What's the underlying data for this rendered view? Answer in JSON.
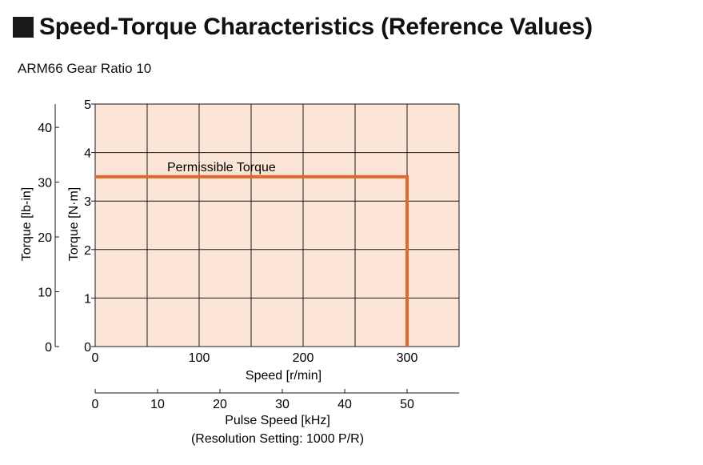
{
  "page": {
    "title": "Speed-Torque Characteristics (Reference Values)",
    "subtitle": "ARM66 Gear Ratio 10"
  },
  "chart_data": {
    "type": "line",
    "colors": {
      "plot_background": "#fce4d6",
      "grid": "#1a1a1a",
      "series": "#e2692b"
    },
    "x_axis": {
      "label": "Speed [r/min]",
      "range": [
        0,
        350
      ],
      "tick_values": [
        0,
        100,
        200,
        300
      ],
      "tick_labels": [
        "0",
        "100",
        "200",
        "300"
      ],
      "grid_step": 50
    },
    "x_axis_secondary": {
      "label_line1": "Pulse Speed [kHz]",
      "label_line2": "(Resolution Setting: 1000 P/R)",
      "range": [
        0,
        58.3333
      ],
      "tick_values": [
        0,
        10,
        20,
        30,
        40,
        50
      ],
      "tick_labels": [
        "0",
        "10",
        "20",
        "30",
        "40",
        "50"
      ]
    },
    "y_axis": {
      "label": "Torque [N·m]",
      "range": [
        0,
        5
      ],
      "tick_values": [
        0,
        1,
        2,
        3,
        4,
        5
      ],
      "tick_labels": [
        "0",
        "1",
        "2",
        "3",
        "4",
        "5"
      ],
      "grid_step": 1
    },
    "y_axis_secondary": {
      "label": "Torque [lb-in]",
      "range": [
        0,
        44.25
      ],
      "tick_values": [
        0,
        10,
        20,
        30,
        40
      ],
      "tick_labels": [
        "0",
        "10",
        "20",
        "30",
        "40"
      ]
    },
    "series": [
      {
        "name": "Permissible Torque",
        "x": [
          0,
          300,
          300
        ],
        "y": [
          3.5,
          3.5,
          0
        ]
      }
    ]
  }
}
